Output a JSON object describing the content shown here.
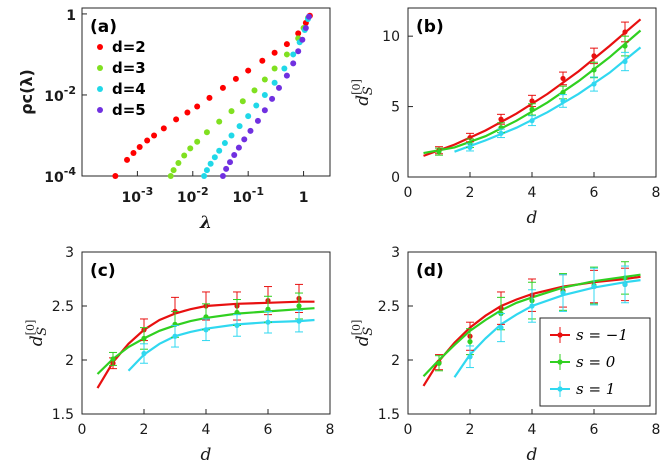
{
  "chart_data": [
    {
      "panel": "(a)",
      "type": "scatter",
      "xscale": "log",
      "yscale": "log",
      "xlim": [
        0.0001,
        3
      ],
      "ylim": [
        0.0001,
        1.4
      ],
      "xlabel": "λ",
      "ylabel": "ρc(λ)",
      "xticks": [
        {
          "v": 0.001,
          "label": "10",
          "exp": "-3"
        },
        {
          "v": 0.01,
          "label": "10",
          "exp": "-2"
        },
        {
          "v": 0.1,
          "label": "10",
          "exp": "-1"
        },
        {
          "v": 1,
          "label": "1",
          "exp": ""
        }
      ],
      "yticks": [
        {
          "v": 0.0001,
          "label": "10",
          "exp": "-4"
        },
        {
          "v": 0.01,
          "label": "10",
          "exp": "-2"
        },
        {
          "v": 1,
          "label": "1",
          "exp": ""
        }
      ],
      "legend": "top-left",
      "series": [
        {
          "name": "d=2",
          "color": "#ff0000",
          "x": [
            0.0004,
            0.00065,
            0.00085,
            0.0011,
            0.0015,
            0.002,
            0.003,
            0.005,
            0.008,
            0.012,
            0.02,
            0.035,
            0.06,
            0.1,
            0.18,
            0.3,
            0.5,
            0.8,
            1.1,
            1.3
          ],
          "y": [
            0.0001,
            0.00025,
            0.00037,
            0.00052,
            0.00075,
            0.001,
            0.0015,
            0.0025,
            0.0037,
            0.0052,
            0.0085,
            0.015,
            0.025,
            0.04,
            0.07,
            0.11,
            0.18,
            0.33,
            0.6,
            0.9
          ]
        },
        {
          "name": "d=3",
          "color": "#80e020",
          "x": [
            0.004,
            0.0045,
            0.0055,
            0.007,
            0.009,
            0.012,
            0.018,
            0.03,
            0.05,
            0.08,
            0.13,
            0.2,
            0.3,
            0.5,
            0.8,
            1.0,
            1.2
          ],
          "y": [
            0.0001,
            0.00014,
            0.00021,
            0.00032,
            0.00048,
            0.0007,
            0.0012,
            0.0022,
            0.004,
            0.007,
            0.013,
            0.024,
            0.045,
            0.1,
            0.25,
            0.45,
            0.8
          ]
        },
        {
          "name": "d=4",
          "color": "#20d8e8",
          "x": [
            0.016,
            0.018,
            0.021,
            0.025,
            0.03,
            0.038,
            0.05,
            0.07,
            0.1,
            0.14,
            0.2,
            0.3,
            0.45,
            0.65,
            0.85,
            1.05,
            1.2
          ],
          "y": [
            0.0001,
            0.00014,
            0.0002,
            0.00029,
            0.00042,
            0.00065,
            0.001,
            0.0017,
            0.003,
            0.0055,
            0.01,
            0.02,
            0.045,
            0.1,
            0.2,
            0.4,
            0.75
          ]
        },
        {
          "name": "d=5",
          "color": "#7030e0",
          "x": [
            0.035,
            0.04,
            0.047,
            0.056,
            0.068,
            0.085,
            0.11,
            0.15,
            0.2,
            0.27,
            0.36,
            0.5,
            0.65,
            0.8,
            0.95,
            1.1,
            1.25
          ],
          "y": [
            0.0001,
            0.00015,
            0.00022,
            0.00033,
            0.0005,
            0.0008,
            0.0013,
            0.0023,
            0.0042,
            0.008,
            0.015,
            0.03,
            0.06,
            0.12,
            0.23,
            0.45,
            0.85
          ]
        }
      ]
    },
    {
      "panel": "(b)",
      "type": "line",
      "xlim": [
        0,
        8
      ],
      "ylim": [
        0,
        12
      ],
      "xticks": [
        0,
        2,
        4,
        6,
        8
      ],
      "yticks": [
        0,
        5,
        10
      ],
      "xlabel": "d",
      "ylabel": "d",
      "ylabel_sub": "S",
      "ylabel_sup": "[0]",
      "series": [
        {
          "name": "s=-1",
          "color": "#e81010",
          "x": [
            1,
            2,
            3,
            4,
            5,
            6,
            7
          ],
          "y": [
            1.9,
            2.8,
            4.1,
            5.4,
            7.0,
            8.6,
            10.3
          ],
          "err": [
            0.25,
            0.3,
            0.35,
            0.4,
            0.45,
            0.55,
            0.7
          ],
          "fit_x": [
            0.5,
            1.5,
            2.5,
            3.5,
            4.5,
            5.5,
            6.5,
            7.5
          ],
          "fit_y": [
            1.5,
            2.3,
            3.3,
            4.5,
            5.9,
            7.5,
            9.3,
            11.2
          ]
        },
        {
          "name": "s=0",
          "color": "#30d020",
          "x": [
            1,
            2,
            3,
            4,
            5,
            6,
            7
          ],
          "y": [
            1.8,
            2.4,
            3.5,
            4.8,
            6.0,
            7.6,
            9.3
          ],
          "err": [
            0.25,
            0.3,
            0.35,
            0.4,
            0.45,
            0.55,
            0.7
          ],
          "fit_x": [
            0.5,
            1.5,
            2.5,
            3.5,
            4.5,
            5.5,
            6.5,
            7.5
          ],
          "fit_y": [
            1.7,
            2.1,
            2.9,
            4.0,
            5.3,
            6.8,
            8.5,
            10.4
          ]
        },
        {
          "name": "s=1",
          "color": "#30d8f0",
          "x": [
            2,
            3,
            4,
            5,
            6,
            7
          ],
          "y": [
            2.1,
            3.1,
            4.0,
            5.4,
            6.6,
            8.2
          ],
          "err": [
            0.25,
            0.3,
            0.35,
            0.45,
            0.5,
            0.65
          ],
          "fit_x": [
            1.5,
            2.5,
            3.5,
            4.5,
            5.5,
            6.5,
            7.5
          ],
          "fit_y": [
            1.8,
            2.6,
            3.5,
            4.6,
            5.9,
            7.4,
            9.2
          ]
        }
      ]
    },
    {
      "panel": "(c)",
      "type": "line",
      "xlim": [
        0,
        8
      ],
      "ylim": [
        1.5,
        3
      ],
      "xticks": [
        0,
        2,
        4,
        6,
        8
      ],
      "yticks": [
        1.5,
        2,
        2.5,
        3
      ],
      "xlabel": "d",
      "ylabel": "d",
      "ylabel_sub": "S",
      "ylabel_sup": "[0]",
      "series": [
        {
          "name": "s=-1",
          "color": "#e81010",
          "x": [
            1,
            2,
            3,
            4,
            5,
            6,
            7
          ],
          "y": [
            1.97,
            2.28,
            2.45,
            2.5,
            2.5,
            2.55,
            2.57
          ],
          "err": [
            0.05,
            0.1,
            0.13,
            0.13,
            0.13,
            0.13,
            0.13
          ],
          "fit_x": [
            0.5,
            1,
            1.5,
            2,
            2.5,
            3,
            3.5,
            4,
            5,
            6,
            7,
            7.5
          ],
          "fit_y": [
            1.74,
            1.98,
            2.15,
            2.28,
            2.37,
            2.43,
            2.47,
            2.5,
            2.52,
            2.53,
            2.54,
            2.54
          ]
        },
        {
          "name": "s=0",
          "color": "#30d020",
          "x": [
            1,
            2,
            3,
            4,
            5,
            6,
            7
          ],
          "y": [
            2.01,
            2.2,
            2.33,
            2.4,
            2.44,
            2.47,
            2.5
          ],
          "err": [
            0.06,
            0.1,
            0.12,
            0.12,
            0.12,
            0.12,
            0.12
          ],
          "fit_x": [
            0.5,
            1,
            1.5,
            2,
            2.5,
            3,
            3.5,
            4,
            5,
            6,
            7,
            7.5
          ],
          "fit_y": [
            1.87,
            2.01,
            2.12,
            2.2,
            2.27,
            2.32,
            2.36,
            2.39,
            2.43,
            2.45,
            2.47,
            2.48
          ]
        },
        {
          "name": "s=1",
          "color": "#30d8f0",
          "x": [
            2,
            3,
            4,
            5,
            6,
            7
          ],
          "y": [
            2.06,
            2.22,
            2.28,
            2.32,
            2.35,
            2.36
          ],
          "err": [
            0.09,
            0.1,
            0.1,
            0.1,
            0.1,
            0.1
          ],
          "fit_x": [
            1.5,
            2,
            2.5,
            3,
            3.5,
            4,
            5,
            6,
            7,
            7.5
          ],
          "fit_y": [
            1.9,
            2.05,
            2.15,
            2.22,
            2.26,
            2.29,
            2.33,
            2.35,
            2.36,
            2.37
          ]
        }
      ]
    },
    {
      "panel": "(d)",
      "type": "line",
      "xlim": [
        0,
        8
      ],
      "ylim": [
        1.5,
        3
      ],
      "xticks": [
        0,
        2,
        4,
        6,
        8
      ],
      "yticks": [
        1.5,
        2,
        2.5,
        3
      ],
      "xlabel": "d",
      "ylabel": "d",
      "ylabel_sub": "S",
      "ylabel_sup": "[0]",
      "legend": "bottom-right",
      "legend_labels": [
        "s = −1",
        "s = 0",
        "s = 1"
      ],
      "series": [
        {
          "name": "s=-1",
          "color": "#e81010",
          "x": [
            1,
            2,
            3,
            4,
            5,
            6,
            7
          ],
          "y": [
            1.98,
            2.22,
            2.48,
            2.6,
            2.64,
            2.68,
            2.7
          ],
          "err": [
            0.07,
            0.13,
            0.15,
            0.15,
            0.15,
            0.15,
            0.15
          ],
          "fit_x": [
            0.5,
            1,
            1.5,
            2,
            2.5,
            3,
            3.5,
            4,
            5,
            6,
            7,
            7.5
          ],
          "fit_y": [
            1.76,
            1.99,
            2.16,
            2.3,
            2.41,
            2.5,
            2.56,
            2.61,
            2.68,
            2.72,
            2.75,
            2.77
          ]
        },
        {
          "name": "s=0",
          "color": "#30d020",
          "x": [
            1,
            2,
            3,
            4,
            5,
            6,
            7
          ],
          "y": [
            1.97,
            2.17,
            2.43,
            2.55,
            2.63,
            2.69,
            2.76
          ],
          "err": [
            0.07,
            0.12,
            0.15,
            0.17,
            0.17,
            0.17,
            0.15
          ],
          "fit_x": [
            0.5,
            1,
            1.5,
            2,
            2.5,
            3,
            3.5,
            4,
            5,
            6,
            7,
            7.5
          ],
          "fit_y": [
            1.85,
            2.0,
            2.14,
            2.27,
            2.37,
            2.46,
            2.53,
            2.58,
            2.67,
            2.73,
            2.77,
            2.79
          ]
        },
        {
          "name": "s=1",
          "color": "#30d8f0",
          "x": [
            2,
            3,
            4,
            5,
            6,
            7
          ],
          "y": [
            2.03,
            2.3,
            2.5,
            2.62,
            2.68,
            2.7
          ],
          "err": [
            0.1,
            0.13,
            0.15,
            0.17,
            0.17,
            0.17
          ],
          "fit_x": [
            1.5,
            2,
            2.5,
            3,
            3.5,
            4,
            5,
            6,
            7,
            7.5
          ],
          "fit_y": [
            1.84,
            2.05,
            2.2,
            2.33,
            2.42,
            2.5,
            2.6,
            2.67,
            2.72,
            2.74
          ]
        }
      ]
    }
  ]
}
